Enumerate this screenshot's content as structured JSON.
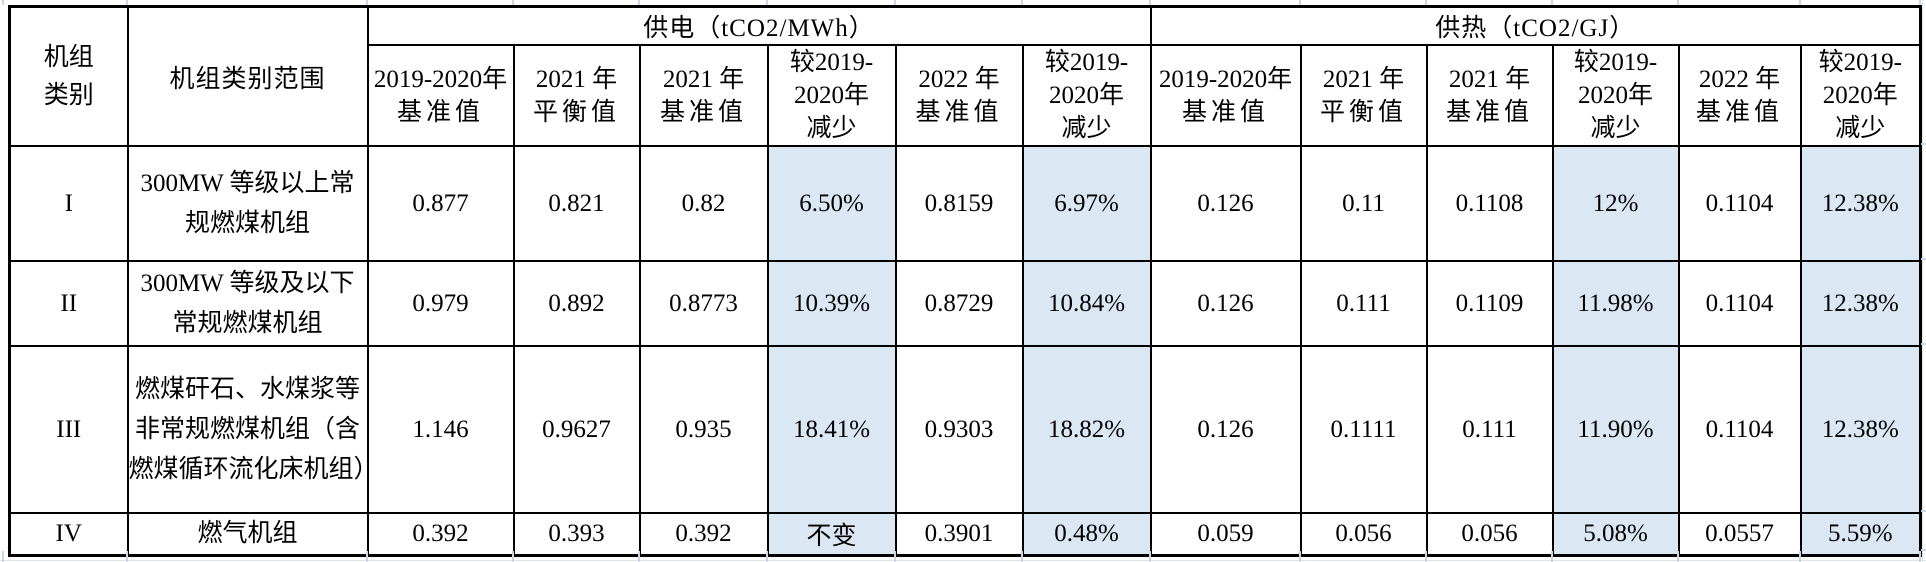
{
  "colors": {
    "highlight_blue": "#dbe8f4",
    "table_border": "#000000",
    "gridline": "#ccd6e0"
  },
  "table": {
    "corner": {
      "line1": "机组",
      "line2": "类别"
    },
    "scope_header": "机组类别范围",
    "groups": [
      {
        "title": "供电（tCO2/MWh）"
      },
      {
        "title": "供热（tCO2/GJ）"
      }
    ],
    "sub_headers": [
      {
        "l1": "2019-2020年",
        "l2": "基准值",
        "l3": ""
      },
      {
        "l1": "2021 年",
        "l2": "平衡值",
        "l3": ""
      },
      {
        "l1": "2021 年",
        "l2": "基准值",
        "l3": ""
      },
      {
        "l1": "较2019-",
        "l2": "2020年",
        "l3": "减少"
      },
      {
        "l1": "2022 年",
        "l2": "基准值",
        "l3": ""
      },
      {
        "l1": "较2019-",
        "l2": "2020年",
        "l3": "减少"
      }
    ],
    "rows": [
      {
        "category": "I",
        "scope": "300MW 等级以上常规燃煤机组",
        "values": [
          "0.877",
          "0.821",
          "0.82",
          "6.50%",
          "0.8159",
          "6.97%",
          "0.126",
          "0.11",
          "0.1108",
          "12%",
          "0.1104",
          "12.38%"
        ]
      },
      {
        "category": "II",
        "scope": "300MW 等级及以下常规燃煤机组",
        "values": [
          "0.979",
          "0.892",
          "0.8773",
          "10.39%",
          "0.8729",
          "10.84%",
          "0.126",
          "0.111",
          "0.1109",
          "11.98%",
          "0.1104",
          "12.38%"
        ]
      },
      {
        "category": "III",
        "scope": "燃煤矸石、水煤浆等非常规燃煤机组（含燃煤循环流化床机组）",
        "values": [
          "1.146",
          "0.9627",
          "0.935",
          "18.41%",
          "0.9303",
          "18.82%",
          "0.126",
          "0.1111",
          "0.111",
          "11.90%",
          "0.1104",
          "12.38%"
        ]
      },
      {
        "category": "IV",
        "scope": "燃气机组",
        "values": [
          "0.392",
          "0.393",
          "0.392",
          "不变",
          "0.3901",
          "0.48%",
          "0.059",
          "0.056",
          "0.056",
          "5.08%",
          "0.0557",
          "5.59%"
        ]
      }
    ]
  }
}
